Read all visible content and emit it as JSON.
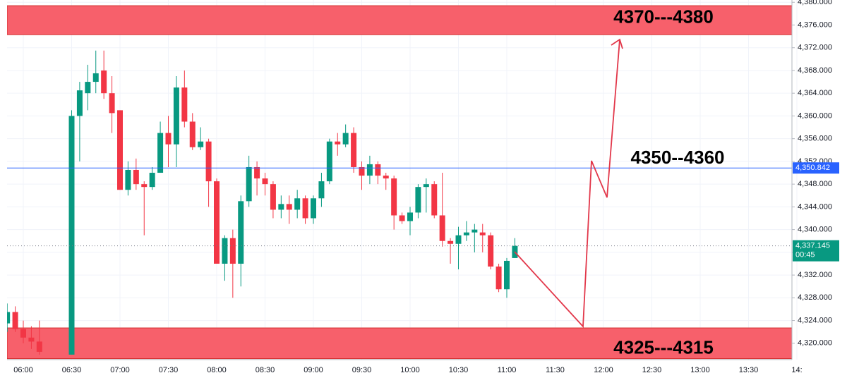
{
  "chart_data": {
    "type": "candlestick",
    "x": [
      "05:50",
      "05:55",
      "06:00",
      "06:05",
      "06:10",
      "06:30",
      "06:35",
      "06:40",
      "06:45",
      "06:50",
      "06:55",
      "07:00",
      "07:05",
      "07:10",
      "07:15",
      "07:20",
      "07:25",
      "07:30",
      "07:35",
      "07:40",
      "07:45",
      "07:50",
      "07:55",
      "08:00",
      "08:05",
      "08:10",
      "08:15",
      "08:20",
      "08:25",
      "08:30",
      "08:35",
      "08:40",
      "08:45",
      "08:50",
      "08:55",
      "09:00",
      "09:05",
      "09:10",
      "09:15",
      "09:20",
      "09:25",
      "09:30",
      "09:35",
      "09:40",
      "09:45",
      "09:50",
      "09:55",
      "10:00",
      "10:05",
      "10:10",
      "10:15",
      "10:20",
      "10:25",
      "10:30",
      "10:35",
      "10:40",
      "10:45",
      "10:50",
      "10:55",
      "11:00",
      "11:05"
    ],
    "open": [
      4323.5,
      4325.5,
      4322.5,
      4321,
      4320.3,
      4318,
      4360,
      4364,
      4366,
      4368,
      4364,
      4361,
      4347,
      4350.5,
      4348,
      4347.5,
      4350,
      4357,
      4355,
      4365,
      4359,
      4354.5,
      4355.5,
      4348.5,
      4334,
      4338.5,
      4334,
      4345,
      4351,
      4349,
      4348,
      4343.5,
      4344.5,
      4343.5,
      4345.5,
      4342,
      4345.5,
      4348.5,
      4355.5,
      4355,
      4357,
      4351,
      4349.5,
      4351.5,
      4349.5,
      4349,
      4342.5,
      4341.5,
      4343,
      4347.5,
      4348,
      4342.5,
      4338,
      4337.5,
      4339,
      4339.5,
      4339.5,
      4339,
      4333.5,
      4329.5,
      4335
    ],
    "high": [
      4327,
      4326.5,
      4324,
      4323,
      4324,
      4361,
      4366,
      4369,
      4371.5,
      4371.5,
      4367,
      4361,
      4352,
      4352.5,
      4348.5,
      4351,
      4359,
      4360,
      4367,
      4368,
      4360.5,
      4358,
      4356,
      4349,
      4339,
      4340,
      4346,
      4353,
      4352,
      4350,
      4348.5,
      4346,
      4346,
      4347,
      4346,
      4346,
      4350,
      4356,
      4357,
      4358.5,
      4358,
      4352,
      4353,
      4352,
      4350,
      4349.5,
      4343,
      4344,
      4348,
      4349,
      4348.5,
      4350,
      4338.5,
      4340.5,
      4341.5,
      4341,
      4341,
      4339.5,
      4334,
      4335,
      4338.5
    ],
    "low": [
      4322,
      4322,
      4320,
      4319,
      4318,
      4318,
      4352,
      4361,
      4364,
      4363,
      4357,
      4347,
      4346,
      4347,
      4339,
      4347,
      4350,
      4351,
      4351,
      4358,
      4354,
      4354,
      4344,
      4334,
      4331,
      4328,
      4330,
      4344,
      4346,
      4346,
      4342,
      4342,
      4341,
      4342,
      4341,
      4341,
      4344,
      4348,
      4353,
      4354.5,
      4350,
      4347,
      4348,
      4348,
      4347,
      4340,
      4341,
      4339,
      4342,
      4343,
      4342,
      4337,
      4334,
      4333,
      4338,
      4336,
      4336,
      4333,
      4329,
      4328,
      4335
    ],
    "close": [
      4325.5,
      4322.5,
      4321,
      4320.3,
      4318.5,
      4360,
      4364.5,
      4366,
      4367.5,
      4364,
      4360.5,
      4347,
      4350.5,
      4348,
      4347.5,
      4350,
      4357,
      4355,
      4365,
      4359,
      4354.5,
      4355.5,
      4348.5,
      4334,
      4338.5,
      4334,
      4345,
      4351,
      4349,
      4348,
      4343.5,
      4344.5,
      4343.5,
      4345.5,
      4342,
      4345.5,
      4348.5,
      4355.5,
      4355,
      4357,
      4351,
      4349.5,
      4351.5,
      4349.5,
      4349,
      4342.5,
      4341.5,
      4343,
      4347.5,
      4348,
      4342.5,
      4338,
      4337.5,
      4339,
      4339.5,
      4340,
      4339,
      4333.5,
      4329.5,
      4334.5,
      4337.145
    ],
    "up_color": "#089981",
    "down_color": "#f23645",
    "ylim": [
      4317,
      4380.4
    ],
    "yticks": [
      {
        "value": 4320,
        "label": "4,320.000"
      },
      {
        "value": 4324,
        "label": "4,324.000"
      },
      {
        "value": 4328,
        "label": "4,328.000"
      },
      {
        "value": 4332,
        "label": "4,332.000"
      },
      {
        "value": 4336,
        "label": "4,336.000"
      },
      {
        "value": 4340,
        "label": "4,340.000"
      },
      {
        "value": 4344,
        "label": "4,344.000"
      },
      {
        "value": 4348,
        "label": "4,348.000"
      },
      {
        "value": 4352,
        "label": "4,352.000"
      },
      {
        "value": 4356,
        "label": "4,356.000"
      },
      {
        "value": 4360,
        "label": "4,360.000"
      },
      {
        "value": 4364,
        "label": "4,364.000"
      },
      {
        "value": 4368,
        "label": "4,368.000"
      },
      {
        "value": 4372,
        "label": "4,372.000"
      },
      {
        "value": 4376,
        "label": "4,376.000"
      },
      {
        "value": 4380,
        "label": "4,380.000"
      }
    ],
    "xticks": [
      "06:00",
      "06:30",
      "07:00",
      "07:30",
      "08:00",
      "08:30",
      "09:00",
      "09:30",
      "10:00",
      "10:30",
      "11:00",
      "11:30",
      "12:00",
      "12:30",
      "13:00",
      "13:30",
      "14:"
    ],
    "grid": true,
    "zones": [
      {
        "label": "4370---4380",
        "from": 4374.3,
        "to": 4379.4,
        "color": "#f7606b"
      },
      {
        "label": "4325---4315",
        "from": 4317.3,
        "to": 4322.7,
        "color": "#f7606b"
      }
    ],
    "level": {
      "label": "4350--4360",
      "value": 4350.842,
      "value_label": "4,350.842",
      "color": "#2962ff"
    },
    "last_price": {
      "value": 4337.145,
      "value_label": "4,337.145",
      "countdown": "00:45",
      "color": "#089981"
    }
  }
}
